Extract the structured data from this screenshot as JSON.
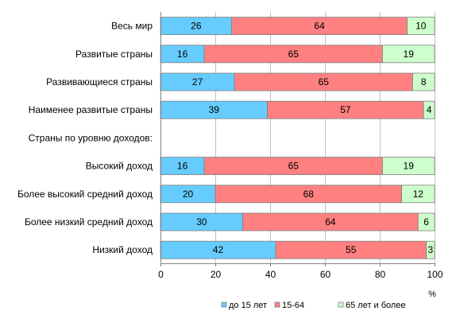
{
  "chart_data": {
    "type": "bar",
    "orientation": "horizontal",
    "stacked": true,
    "categories": [
      "Весь мир",
      "Развитые страны",
      "Развивающиеся страны",
      "Наименее развитые страны",
      "Страны по уровню доходов:",
      "Высокий доход",
      "Более высокий средний доход",
      "Более низкий средний доход",
      "Низкий доход"
    ],
    "series": [
      {
        "name": "до 15 лет",
        "color": "#66ccff",
        "values": [
          26,
          16,
          27,
          39,
          null,
          16,
          20,
          30,
          42
        ]
      },
      {
        "name": "15-64",
        "color": "#ff8080",
        "values": [
          64,
          65,
          65,
          57,
          null,
          65,
          68,
          64,
          55
        ]
      },
      {
        "name": "65 лет и более",
        "color": "#ccffcc",
        "values": [
          10,
          19,
          8,
          4,
          null,
          19,
          12,
          6,
          3
        ]
      }
    ],
    "xlim": [
      0,
      100
    ],
    "xticks": [
      0,
      20,
      40,
      60,
      80,
      100
    ],
    "xunit": "%",
    "grid": "vertical",
    "legend": "bottom"
  }
}
